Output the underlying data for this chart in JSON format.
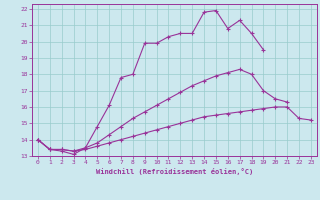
{
  "xlabel": "Windchill (Refroidissement éolien,°C)",
  "background_color": "#cce8ee",
  "line_color": "#993399",
  "grid_color": "#99cccc",
  "xlim": [
    -0.5,
    23.5
  ],
  "ylim": [
    13,
    22.3
  ],
  "yticks": [
    13,
    14,
    15,
    16,
    17,
    18,
    19,
    20,
    21,
    22
  ],
  "xticks": [
    0,
    1,
    2,
    3,
    4,
    5,
    6,
    7,
    8,
    9,
    10,
    11,
    12,
    13,
    14,
    15,
    16,
    17,
    18,
    19,
    20,
    21,
    22,
    23
  ],
  "series": [
    {
      "x": [
        0,
        1,
        2,
        3,
        4,
        5,
        6,
        7,
        8,
        9,
        10,
        11,
        12,
        13,
        14,
        15,
        16,
        17,
        18,
        19,
        20,
        21,
        22,
        23
      ],
      "y": [
        14.0,
        13.4,
        13.3,
        13.1,
        13.5,
        14.8,
        16.1,
        17.8,
        18.0,
        19.9,
        19.9,
        20.3,
        20.5,
        20.5,
        21.8,
        21.9,
        20.8,
        21.3,
        20.5,
        19.5,
        null,
        null,
        null,
        null
      ]
    },
    {
      "x": [
        0,
        1,
        2,
        3,
        4,
        5,
        6,
        7,
        8,
        9,
        10,
        11,
        12,
        13,
        14,
        15,
        16,
        17,
        18,
        19,
        20,
        21,
        22,
        23
      ],
      "y": [
        14.0,
        13.4,
        13.4,
        13.3,
        13.5,
        13.8,
        14.3,
        14.8,
        15.3,
        15.7,
        16.1,
        16.5,
        16.9,
        17.3,
        17.6,
        17.9,
        18.1,
        18.3,
        18.0,
        17.0,
        16.5,
        16.3,
        null,
        null
      ]
    },
    {
      "x": [
        0,
        1,
        2,
        3,
        4,
        5,
        6,
        7,
        8,
        9,
        10,
        11,
        12,
        13,
        14,
        15,
        16,
        17,
        18,
        19,
        20,
        21,
        22,
        23
      ],
      "y": [
        14.0,
        13.4,
        13.4,
        13.3,
        13.4,
        13.6,
        13.8,
        14.0,
        14.2,
        14.4,
        14.6,
        14.8,
        15.0,
        15.2,
        15.4,
        15.5,
        15.6,
        15.7,
        15.8,
        15.9,
        16.0,
        16.0,
        15.3,
        15.2
      ]
    }
  ]
}
